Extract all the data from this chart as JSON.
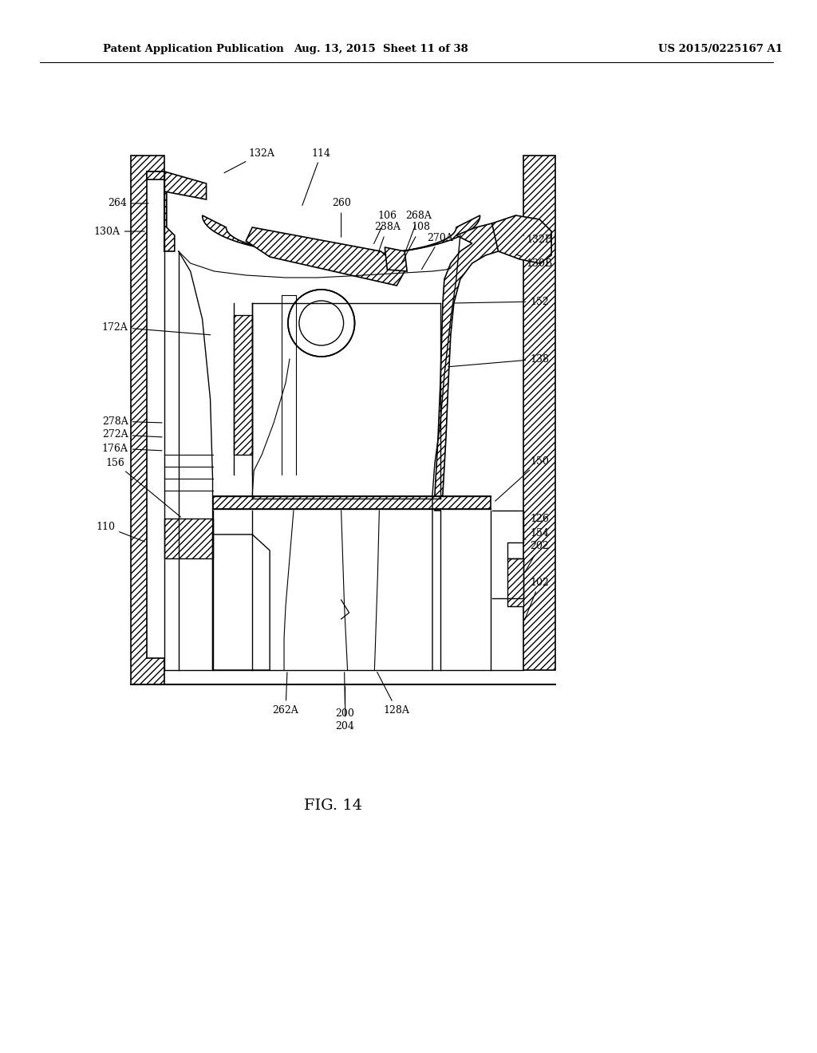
{
  "title_left": "Patent Application Publication",
  "title_mid": "Aug. 13, 2015  Sheet 11 of 38",
  "title_right": "US 2015/0225167 A1",
  "fig_label": "FIG. 14",
  "background_color": "#ffffff",
  "line_color": "#000000"
}
